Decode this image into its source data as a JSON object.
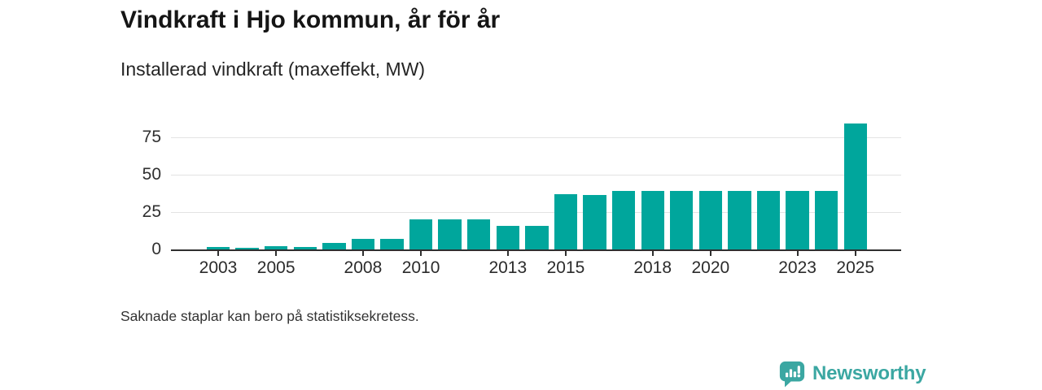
{
  "header": {
    "title": "Vindkraft i Hjo kommun, år för år",
    "subtitle": "Installerad vindkraft (maxeffekt, MW)"
  },
  "footer": {
    "note": "Saknade staplar kan bero på statistiksekretess."
  },
  "branding": {
    "logo_text": "Newsworthy",
    "logo_icon": "newsworthy-chart-bubble-icon",
    "brand_color": "#3ba7a2"
  },
  "colors": {
    "bar": "#00a69c",
    "gridline": "#e3e3e3",
    "axis_line": "#2f2f2f",
    "axis_text": "#303030",
    "title_text": "#151515",
    "background": "#ffffff"
  },
  "chart_data": {
    "type": "bar",
    "title": "Vindkraft i Hjo kommun, år för år",
    "subtitle": "Installerad vindkraft (maxeffekt, MW)",
    "unit": "MW",
    "xlabel": "",
    "ylabel": "",
    "x": [
      2003,
      2004,
      2005,
      2006,
      2007,
      2008,
      2009,
      2010,
      2011,
      2012,
      2013,
      2014,
      2015,
      2016,
      2017,
      2018,
      2019,
      2020,
      2021,
      2022,
      2023,
      2024,
      2025
    ],
    "values": [
      1.5,
      1,
      2,
      1.5,
      4.5,
      7,
      7,
      20,
      20,
      20,
      16,
      16,
      37,
      36.5,
      39,
      39,
      39,
      39,
      39,
      39,
      39,
      39,
      84
    ],
    "x_tick_labels": [
      "2003",
      "2005",
      "2008",
      "2010",
      "2013",
      "2015",
      "2018",
      "2020",
      "2023",
      "2025"
    ],
    "y_ticks": [
      0,
      25,
      50,
      75
    ],
    "ylim": [
      0,
      88
    ],
    "grid": "horizontal",
    "legend": "none",
    "bar_color": "#00a69c",
    "note": "Saknade staplar kan bero på statistiksekretess."
  }
}
